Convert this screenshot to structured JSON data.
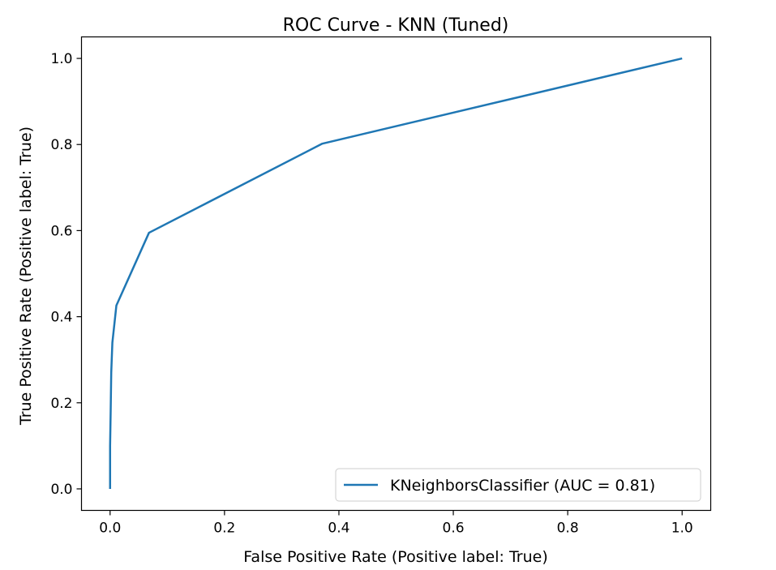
{
  "chart_data": {
    "type": "line",
    "title": "ROC Curve - KNN (Tuned)",
    "xlabel": "False Positive Rate (Positive label: True)",
    "ylabel": "True Positive Rate (Positive label: True)",
    "xlim": [
      -0.05,
      1.05
    ],
    "ylim": [
      -0.05,
      1.05
    ],
    "x_ticks": [
      0.0,
      0.2,
      0.4,
      0.6,
      0.8,
      1.0
    ],
    "y_ticks": [
      0.0,
      0.2,
      0.4,
      0.6,
      0.8,
      1.0
    ],
    "x_tick_labels": [
      "0.0",
      "0.2",
      "0.4",
      "0.6",
      "0.8",
      "1.0"
    ],
    "y_tick_labels": [
      "0.0",
      "0.2",
      "0.4",
      "0.6",
      "0.8",
      "1.0"
    ],
    "grid": false,
    "legend_position": "lower-right",
    "series": [
      {
        "name": "KNeighborsClassifier (AUC = 0.81)",
        "color": "#1f77b4",
        "x": [
          0.0,
          0.0,
          0.001,
          0.002,
          0.004,
          0.011,
          0.068,
          0.371,
          1.0
        ],
        "y": [
          0.0,
          0.1,
          0.18,
          0.27,
          0.34,
          0.426,
          0.595,
          0.802,
          1.0
        ]
      }
    ]
  }
}
